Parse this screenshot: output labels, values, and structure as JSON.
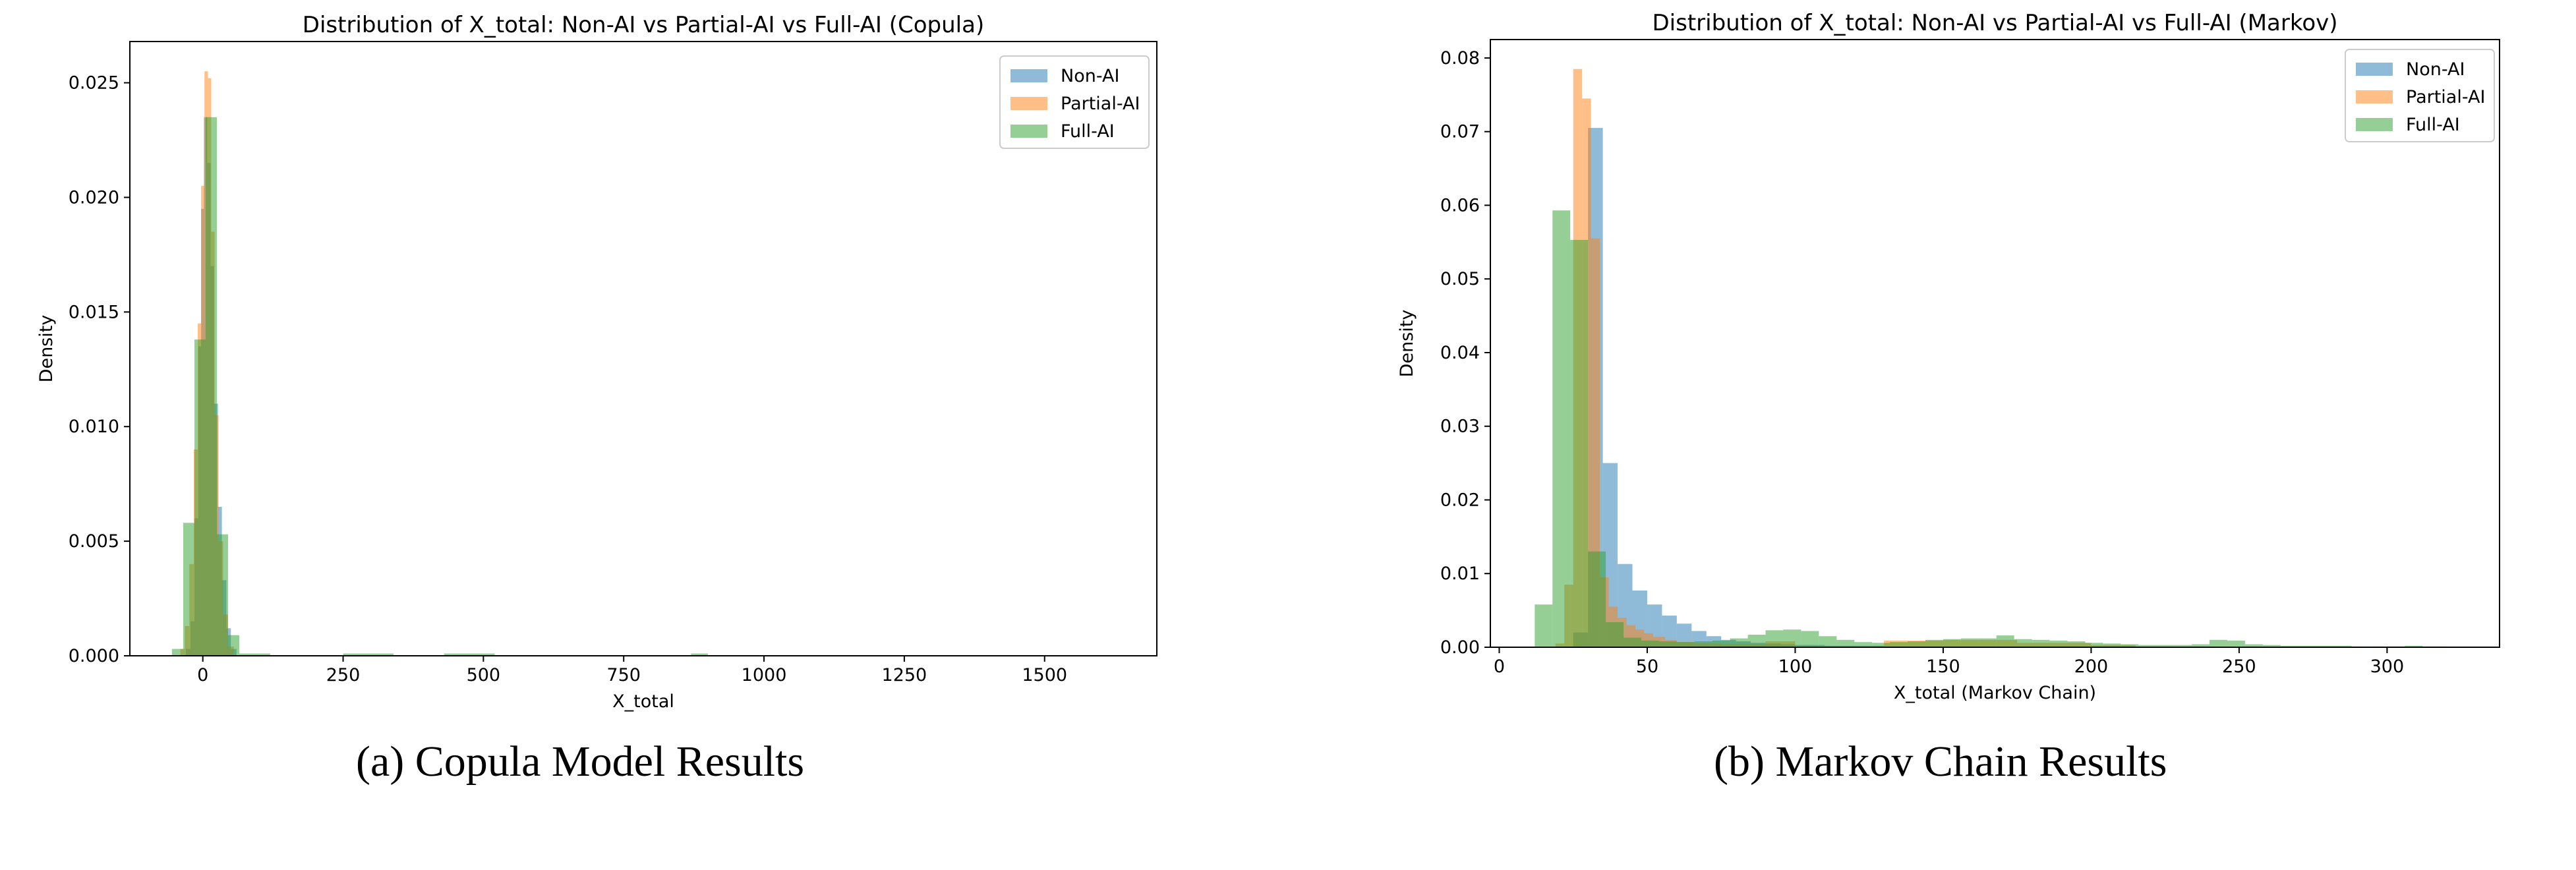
{
  "chart_data": [
    {
      "type": "histogram",
      "title": "Distribution of X_total: Non-AI vs Partial-AI vs Full-AI (Copula)",
      "xlabel": "X_total",
      "ylabel": "Density",
      "xlim": [
        -130,
        1700
      ],
      "ylim": [
        0,
        0.0268
      ],
      "xticks": [
        0,
        250,
        500,
        750,
        1000,
        1250,
        1500
      ],
      "yticks": [
        0.0,
        0.005,
        0.01,
        0.015,
        0.02,
        0.025
      ],
      "xtick_labels": [
        "0",
        "250",
        "500",
        "750",
        "1000",
        "1250",
        "1500"
      ],
      "ytick_labels": [
        "0.000",
        "0.005",
        "0.010",
        "0.015",
        "0.020",
        "0.025"
      ],
      "legend_position": "top-right",
      "series": [
        {
          "name": "Non-AI",
          "color": "#1f77b4",
          "bins": [
            [
              -30,
              -22,
              0.0003
            ],
            [
              -22,
              -15,
              0.0015
            ],
            [
              -15,
              -8,
              0.006
            ],
            [
              -8,
              -3,
              0.0135
            ],
            [
              -3,
              2,
              0.0195
            ],
            [
              2,
              8,
              0.0235
            ],
            [
              8,
              14,
              0.0215
            ],
            [
              14,
              20,
              0.017
            ],
            [
              20,
              27,
              0.011
            ],
            [
              27,
              34,
              0.0065
            ],
            [
              34,
              42,
              0.0033
            ],
            [
              42,
              50,
              0.0012
            ],
            [
              50,
              60,
              0.0003
            ]
          ]
        },
        {
          "name": "Partial-AI",
          "color": "#ff7f0e",
          "bins": [
            [
              -40,
              -32,
              0.0003
            ],
            [
              -32,
              -24,
              0.0013
            ],
            [
              -24,
              -16,
              0.004
            ],
            [
              -16,
              -9,
              0.009
            ],
            [
              -9,
              -3,
              0.0145
            ],
            [
              -3,
              3,
              0.0205
            ],
            [
              3,
              9,
              0.0255
            ],
            [
              9,
              15,
              0.0252
            ],
            [
              15,
              21,
              0.0185
            ],
            [
              21,
              28,
              0.0105
            ],
            [
              28,
              36,
              0.005
            ],
            [
              36,
              45,
              0.0018
            ],
            [
              45,
              55,
              0.0004
            ]
          ]
        },
        {
          "name": "Full-AI",
          "color": "#2ca02c",
          "bins": [
            [
              -55,
              -35,
              0.0003
            ],
            [
              -35,
              -15,
              0.0058
            ],
            [
              -15,
              5,
              0.0138
            ],
            [
              5,
              25,
              0.0235
            ],
            [
              25,
              45,
              0.0053
            ],
            [
              45,
              65,
              0.0009
            ],
            [
              65,
              120,
              0.0001
            ],
            [
              250,
              340,
              0.0001
            ],
            [
              430,
              520,
              0.0001
            ],
            [
              870,
              900,
              0.0001
            ]
          ]
        }
      ]
    },
    {
      "type": "histogram",
      "title": "Distribution of X_total: Non-AI vs Partial-AI vs Full-AI (Markov)",
      "xlabel": "X_total (Markov Chain)",
      "ylabel": "Density",
      "xlim": [
        -3,
        338
      ],
      "ylim": [
        0,
        0.0825
      ],
      "xticks": [
        0,
        50,
        100,
        150,
        200,
        250,
        300
      ],
      "yticks": [
        0.0,
        0.01,
        0.02,
        0.03,
        0.04,
        0.05,
        0.06,
        0.07,
        0.08
      ],
      "xtick_labels": [
        "0",
        "50",
        "100",
        "150",
        "200",
        "250",
        "300"
      ],
      "ytick_labels": [
        "0.00",
        "0.01",
        "0.02",
        "0.03",
        "0.04",
        "0.05",
        "0.06",
        "0.07",
        "0.08"
      ],
      "legend_position": "top-right",
      "series": [
        {
          "name": "Non-AI",
          "color": "#1f77b4",
          "bins": [
            [
              25,
              30,
              0.002
            ],
            [
              30,
              35,
              0.0705
            ],
            [
              35,
              40,
              0.025
            ],
            [
              40,
              45,
              0.0113
            ],
            [
              45,
              50,
              0.0077
            ],
            [
              50,
              55,
              0.0058
            ],
            [
              55,
              60,
              0.0043
            ],
            [
              60,
              65,
              0.0032
            ],
            [
              65,
              70,
              0.0022
            ],
            [
              70,
              75,
              0.0015
            ],
            [
              75,
              80,
              0.001
            ],
            [
              80,
              85,
              0.0008
            ],
            [
              85,
              90,
              0.0006
            ],
            [
              90,
              95,
              0.0005
            ],
            [
              95,
              100,
              0.0004
            ],
            [
              100,
              110,
              0.0003
            ],
            [
              110,
              130,
              0.0002
            ]
          ]
        },
        {
          "name": "Partial-AI",
          "color": "#ff7f0e",
          "bins": [
            [
              19,
              22,
              0.0005
            ],
            [
              22,
              25,
              0.0085
            ],
            [
              25,
              28,
              0.0785
            ],
            [
              28,
              31,
              0.0745
            ],
            [
              31,
              34,
              0.0555
            ],
            [
              34,
              37,
              0.0095
            ],
            [
              37,
              40,
              0.0055
            ],
            [
              40,
              43,
              0.004
            ],
            [
              43,
              46,
              0.003
            ],
            [
              46,
              49,
              0.0024
            ],
            [
              49,
              52,
              0.0019
            ],
            [
              52,
              56,
              0.0014
            ],
            [
              56,
              60,
              0.001
            ],
            [
              60,
              66,
              0.0007
            ],
            [
              66,
              75,
              0.0005
            ],
            [
              75,
              90,
              0.0004
            ],
            [
              90,
              100,
              0.0008
            ],
            [
              130,
              150,
              0.0009
            ],
            [
              150,
              175,
              0.001
            ],
            [
              175,
              200,
              0.0006
            ],
            [
              200,
              215,
              0.0003
            ]
          ]
        },
        {
          "name": "Full-AI",
          "color": "#2ca02c",
          "bins": [
            [
              12,
              18,
              0.0058
            ],
            [
              18,
              24,
              0.0593
            ],
            [
              24,
              30,
              0.0553
            ],
            [
              30,
              36,
              0.013
            ],
            [
              36,
              42,
              0.0034
            ],
            [
              42,
              48,
              0.0013
            ],
            [
              48,
              54,
              0.0009
            ],
            [
              54,
              60,
              0.0008
            ],
            [
              60,
              66,
              0.0007
            ],
            [
              66,
              72,
              0.0008
            ],
            [
              72,
              78,
              0.0009
            ],
            [
              78,
              84,
              0.0012
            ],
            [
              84,
              90,
              0.0017
            ],
            [
              90,
              96,
              0.0023
            ],
            [
              96,
              102,
              0.0024
            ],
            [
              102,
              108,
              0.0022
            ],
            [
              108,
              114,
              0.0015
            ],
            [
              114,
              120,
              0.001
            ],
            [
              120,
              126,
              0.0007
            ],
            [
              126,
              132,
              0.0006
            ],
            [
              132,
              138,
              0.0007
            ],
            [
              138,
              144,
              0.0008
            ],
            [
              144,
              150,
              0.001
            ],
            [
              150,
              156,
              0.0011
            ],
            [
              156,
              162,
              0.0012
            ],
            [
              162,
              168,
              0.0012
            ],
            [
              168,
              174,
              0.0016
            ],
            [
              174,
              180,
              0.0011
            ],
            [
              180,
              186,
              0.001
            ],
            [
              186,
              192,
              0.0009
            ],
            [
              192,
              198,
              0.0008
            ],
            [
              198,
              204,
              0.0006
            ],
            [
              204,
              210,
              0.0005
            ],
            [
              210,
              216,
              0.0004
            ],
            [
              216,
              222,
              0.0003
            ],
            [
              222,
              228,
              0.0003
            ],
            [
              228,
              234,
              0.0003
            ],
            [
              234,
              240,
              0.0004
            ],
            [
              240,
              246,
              0.001
            ],
            [
              246,
              252,
              0.0009
            ],
            [
              252,
              258,
              0.0004
            ],
            [
              258,
              264,
              0.0003
            ],
            [
              264,
              270,
              0.0002
            ],
            [
              270,
              276,
              0.0002
            ],
            [
              276,
              282,
              0.0002
            ],
            [
              282,
              288,
              0.0002
            ],
            [
              288,
              294,
              0.0001
            ],
            [
              294,
              300,
              0.0001
            ],
            [
              300,
              306,
              0.0001
            ],
            [
              306,
              312,
              0.0002
            ],
            [
              312,
              320,
              0.0001
            ]
          ]
        }
      ]
    }
  ],
  "captions": {
    "a": "(a) Copula Model Results",
    "b": "(b) Markov Chain Results"
  }
}
